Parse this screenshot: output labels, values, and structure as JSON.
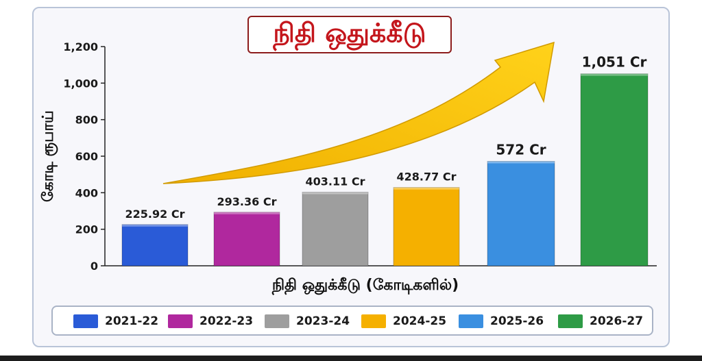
{
  "chart_data": {
    "type": "bar",
    "title": "நிதி ஒதுக்கீடு",
    "xlabel": "நிதி ஒதுக்கீடு  (கோடிகளில்)",
    "ylabel": "கோடி ரூபாய்",
    "ylim": [
      0,
      1200
    ],
    "yticks": [
      "0",
      "200",
      "400",
      "600",
      "800",
      "1,000",
      "1,200"
    ],
    "grid": false,
    "legend_position": "bottom",
    "categories": [
      "2021-22",
      "2022-23",
      "2023-24",
      "2024-25",
      "2025-26",
      "2026-27"
    ],
    "values": [
      225.92,
      293.36,
      403.11,
      428.77,
      572,
      1051
    ],
    "data_labels": [
      "225.92 Cr",
      "293.36 Cr",
      "403.11 Cr",
      "428.77 Cr",
      "572 Cr",
      "1,051 Cr"
    ],
    "colors": [
      "#2a5bd7",
      "#b0289e",
      "#9e9e9e",
      "#f5b000",
      "#3a8fe0",
      "#2e9b46"
    ],
    "annotation": "upward trend arrow"
  }
}
